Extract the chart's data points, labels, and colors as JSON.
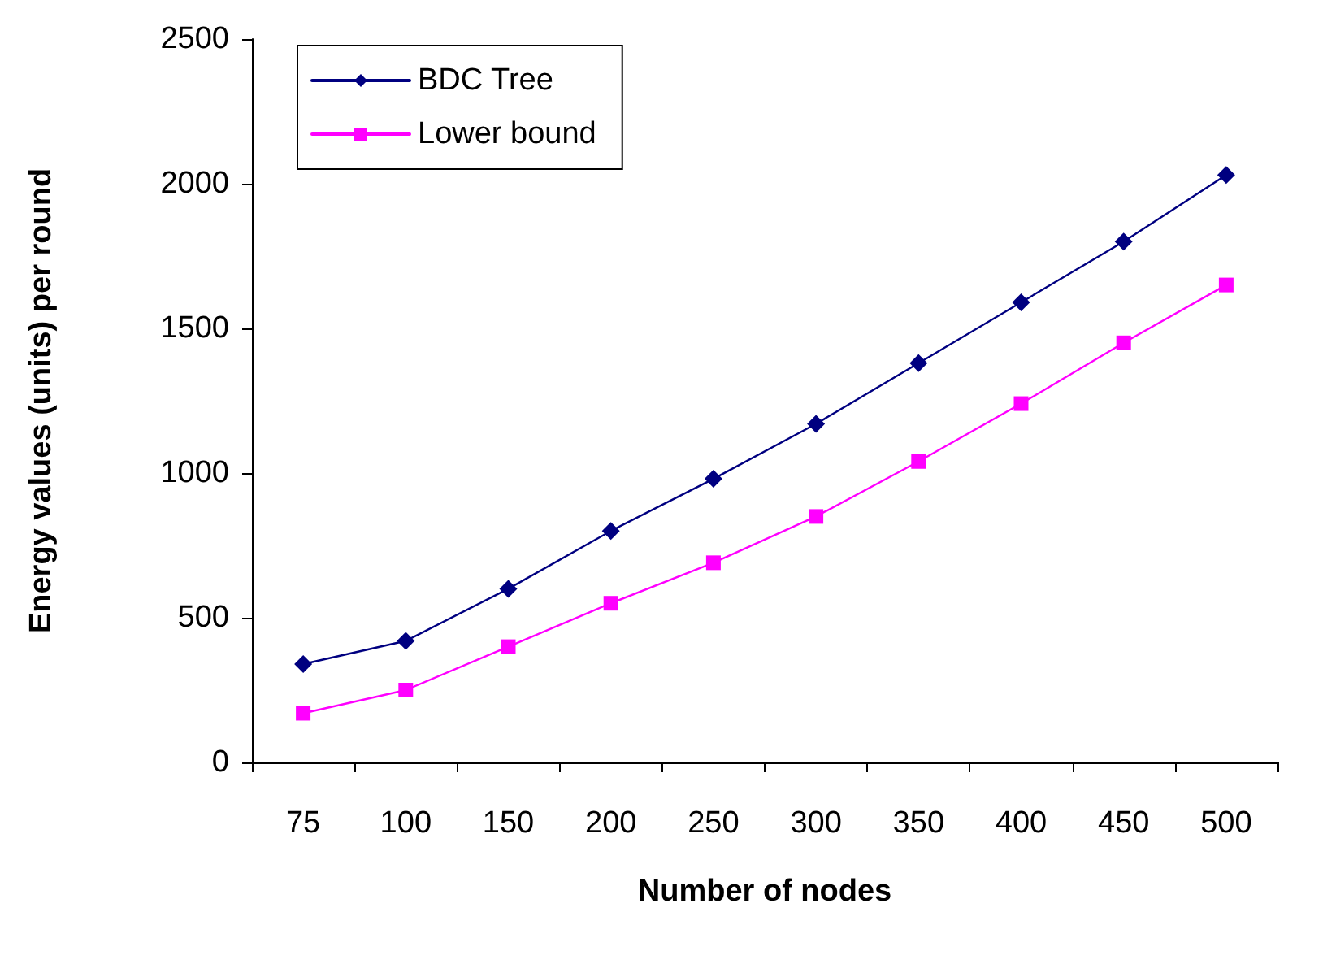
{
  "chart_data": {
    "type": "line",
    "xlabel": "Number of nodes",
    "ylabel": "Energy values (units) per round",
    "categories": [
      "75",
      "100",
      "150",
      "200",
      "250",
      "300",
      "350",
      "400",
      "450",
      "500"
    ],
    "series": [
      {
        "name": "BDC Tree",
        "color": "#000080",
        "marker": "diamond",
        "values": [
          340,
          420,
          600,
          800,
          980,
          1170,
          1380,
          1590,
          1800,
          2030
        ]
      },
      {
        "name": "Lower bound",
        "color": "#ff00ff",
        "marker": "square",
        "values": [
          170,
          250,
          400,
          550,
          690,
          850,
          1040,
          1240,
          1450,
          1650
        ]
      }
    ],
    "ylim": [
      0,
      2500
    ],
    "yticks": [
      0,
      500,
      1000,
      1500,
      2000,
      2500
    ],
    "grid": false,
    "legend": "top left",
    "line_style": "solid"
  }
}
